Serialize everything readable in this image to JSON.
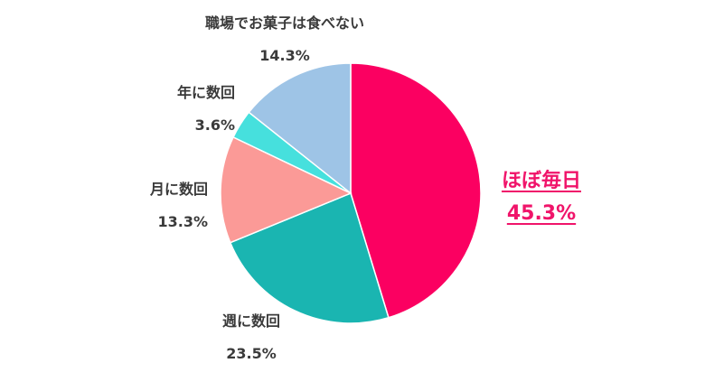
{
  "chart_data": {
    "type": "pie",
    "title": "",
    "slices": [
      {
        "label": "ほぼ毎日",
        "value": 45.3,
        "display": "45.3%",
        "color": "#fb0061"
      },
      {
        "label": "週に数回",
        "value": 23.5,
        "display": "23.5%",
        "color": "#1ab5b1"
      },
      {
        "label": "月に数回",
        "value": 13.3,
        "display": "13.3%",
        "color": "#fb9a97"
      },
      {
        "label": "年に数回",
        "value": 3.6,
        "display": "3.6%",
        "color": "#46e0dd"
      },
      {
        "label": "職場でお菓子は食べない",
        "value": 14.3,
        "display": "14.3%",
        "color": "#9ec4e6"
      }
    ],
    "start": "12 o'clock",
    "direction": "clockwise",
    "highlight": "ほぼ毎日"
  }
}
